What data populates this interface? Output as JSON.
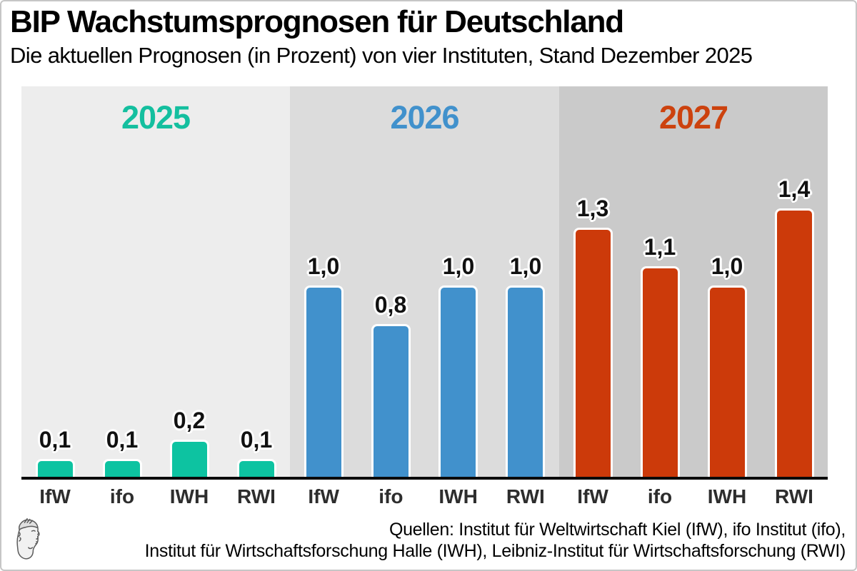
{
  "header": {
    "title": "BIP Wachstumsprognosen für Deutschland",
    "subtitle": "Die aktuellen Prognosen (in Prozent) von vier Instituten, Stand Dezember 2025"
  },
  "chart_data": {
    "type": "bar",
    "unit": "percent",
    "decimal_style": "comma",
    "categories": [
      "IfW",
      "ifo",
      "IWH",
      "RWI"
    ],
    "series": [
      {
        "name": "2025",
        "values": [
          0.1,
          0.1,
          0.2,
          0.1
        ],
        "value_labels": [
          "0,1",
          "0,1",
          "0,2",
          "0,1"
        ],
        "bar_color": "#0dc3a1",
        "year_label_color": "#14bf9f",
        "panel_bg": "#ededed"
      },
      {
        "name": "2026",
        "values": [
          1.0,
          0.8,
          1.0,
          1.0
        ],
        "value_labels": [
          "1,0",
          "0,8",
          "1,0",
          "1,0"
        ],
        "bar_color": "#4191cc",
        "year_label_color": "#4191cc",
        "panel_bg": "#dcdcdc"
      },
      {
        "name": "2027",
        "values": [
          1.3,
          1.1,
          1.0,
          1.4
        ],
        "value_labels": [
          "1,3",
          "1,1",
          "1,0",
          "1,4"
        ],
        "bar_color": "#cc3a0a",
        "year_label_color": "#cc420e",
        "panel_bg": "#cacaca"
      }
    ],
    "ylim": [
      0,
      1.55
    ],
    "grid": "off",
    "legend": "none",
    "axis_line_color": "#0a0a0a"
  },
  "footer": {
    "source_line1": "Quellen: Institut für Weltwirtschaft Kiel (IfW), ifo Institut (ifo),",
    "source_line2": "Institut für Wirtschaftsforschung Halle (IWH), Leibniz-Institut für Wirtschaftsforschung (RWI)",
    "logo_name": "dpa-hermes-head-logo"
  }
}
